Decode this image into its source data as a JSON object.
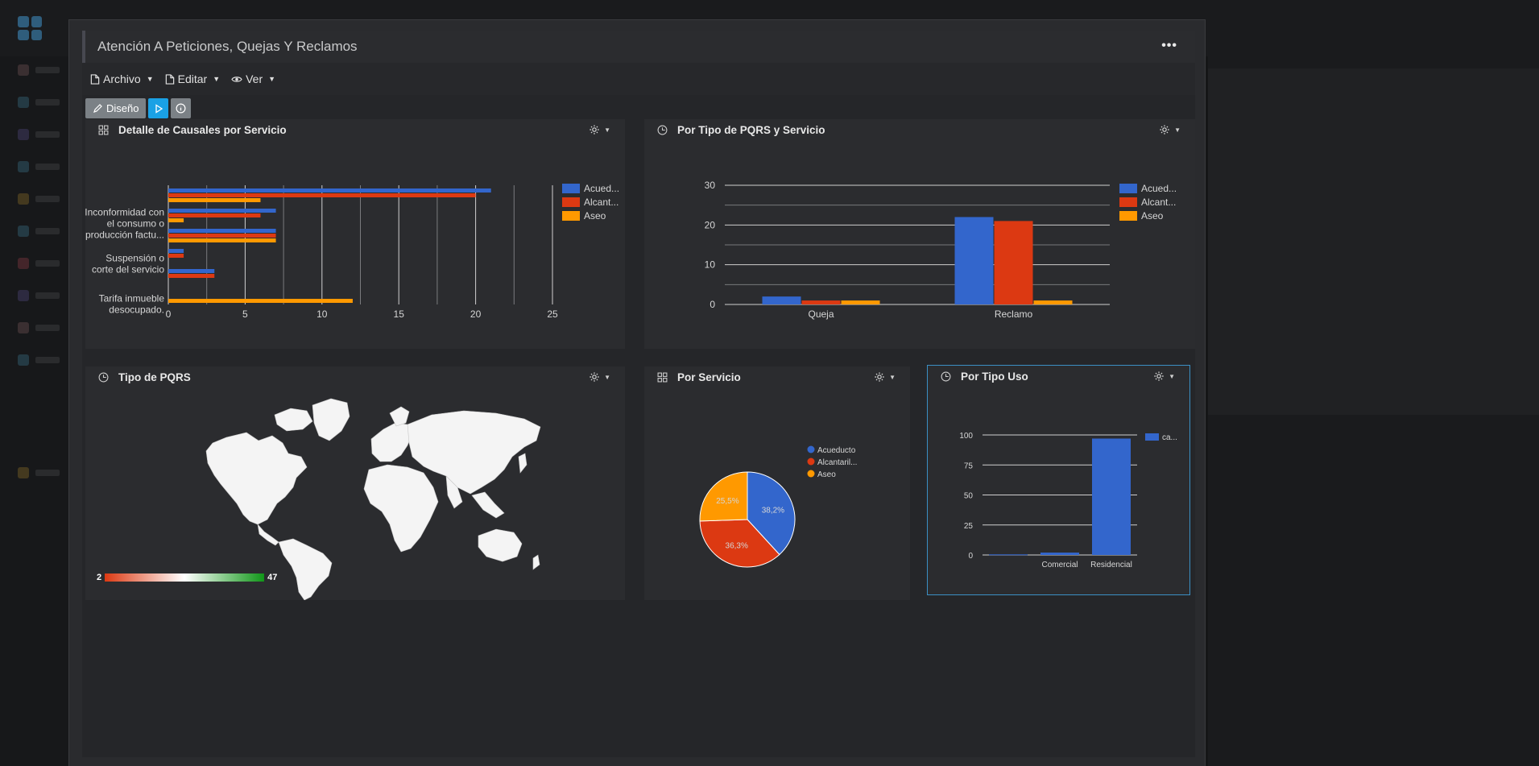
{
  "page": {
    "title": "Atención A Peticiones, Quejas Y Reclamos",
    "more_label": "•••"
  },
  "menu": {
    "archivo": "Archivo",
    "editar": "Editar",
    "ver": "Ver"
  },
  "toolbar": {
    "diseno": "Diseño"
  },
  "colors": {
    "acueducto": "#3366cc",
    "alcantarillado": "#dc3912",
    "aseo": "#ff9900"
  },
  "panels": {
    "causales": {
      "title": "Detalle de Causales por Servicio"
    },
    "tipo_servicio": {
      "title": "Por Tipo de PQRS y Servicio"
    },
    "tipo_pqrs": {
      "title": "Tipo de PQRS"
    },
    "por_servicio": {
      "title": "Por Servicio"
    },
    "tipo_uso": {
      "title": "Por Tipo Uso"
    }
  },
  "chart_data": [
    {
      "id": "causales",
      "type": "bar",
      "orientation": "horizontal",
      "title": "Detalle de Causales por Servicio",
      "categories": [
        "",
        "Inconformidad con el consumo o producción factu...",
        "",
        "Suspensión o corte del servicio",
        "",
        "Tarifa inmueble desocupado."
      ],
      "category_lines": [
        [],
        [
          "Inconformidad con",
          "el consumo o",
          "producción factu..."
        ],
        [],
        [
          "Suspensión o",
          "corte del servicio"
        ],
        [],
        [
          "Tarifa inmueble",
          "desocupado."
        ]
      ],
      "series": [
        {
          "name": "Acued...",
          "values": [
            21,
            7,
            7,
            1,
            3,
            0
          ]
        },
        {
          "name": "Alcant...",
          "values": [
            20,
            6,
            7,
            1,
            3,
            0
          ]
        },
        {
          "name": "Aseo",
          "values": [
            6,
            1,
            7,
            0,
            0,
            12
          ]
        }
      ],
      "xlim": [
        0,
        25
      ],
      "xticks": [
        "0",
        "5",
        "10",
        "15",
        "20",
        "25"
      ],
      "grid": true,
      "legend": "right"
    },
    {
      "id": "tipo_servicio",
      "type": "bar",
      "title": "Por Tipo de PQRS y Servicio",
      "categories": [
        "Queja",
        "Reclamo"
      ],
      "series": [
        {
          "name": "Acued...",
          "values": [
            2,
            22
          ]
        },
        {
          "name": "Alcant...",
          "values": [
            1,
            21
          ]
        },
        {
          "name": "Aseo",
          "values": [
            1,
            1
          ]
        }
      ],
      "ylim": [
        0,
        30
      ],
      "yticks": [
        "0",
        "10",
        "20",
        "30"
      ],
      "grid": true,
      "legend": "right"
    },
    {
      "id": "tipo_pqrs",
      "type": "map",
      "title": "Tipo de PQRS",
      "colorscale": {
        "min": "2",
        "max": "47",
        "min_color": "#dc3912",
        "max_color": "#109618"
      }
    },
    {
      "id": "por_servicio",
      "type": "pie",
      "title": "Por Servicio",
      "labels": [
        "Acueducto",
        "Alcantaril...",
        "Aseo"
      ],
      "values": [
        38.2,
        36.3,
        25.5
      ],
      "value_labels": [
        "38,2%",
        "36,3%",
        "25,5%"
      ],
      "legend": "right"
    },
    {
      "id": "tipo_uso",
      "type": "bar",
      "title": "Por Tipo Uso",
      "categories": [
        "",
        "Comercial",
        "Residencial"
      ],
      "series": [
        {
          "name": "ca...",
          "values": [
            0.5,
            2,
            97
          ]
        }
      ],
      "ylim": [
        0,
        100
      ],
      "yticks": [
        "0",
        "25",
        "50",
        "75",
        "100"
      ],
      "grid": true,
      "legend": "right"
    }
  ]
}
